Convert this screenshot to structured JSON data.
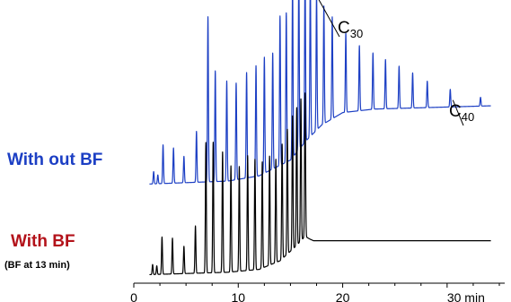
{
  "chart_data": {
    "type": "line",
    "xlim": [
      0,
      35
    ],
    "x_ticks": [
      {
        "value": 0,
        "label": "0"
      },
      {
        "value": 10,
        "label": "10"
      },
      {
        "value": 20,
        "label": "20"
      },
      {
        "value": 30,
        "label": "30 min"
      }
    ],
    "x_minor_step": 2.5,
    "grid": false,
    "series": [
      {
        "name": "With out BF",
        "color": "#1c3fc4",
        "baseline_rel": 0.0,
        "drift": [
          [
            0,
            0.0
          ],
          [
            9,
            0.02
          ],
          [
            12,
            0.05
          ],
          [
            15,
            0.14
          ],
          [
            16.5,
            0.25
          ],
          [
            18,
            0.34
          ],
          [
            20,
            0.41
          ],
          [
            23,
            0.43
          ],
          [
            35,
            0.45
          ]
        ],
        "peaks": [
          {
            "rt": 1.9,
            "h": 0.07
          },
          {
            "rt": 2.3,
            "h": 0.05
          },
          {
            "rt": 2.8,
            "h": 0.22
          },
          {
            "rt": 3.8,
            "h": 0.2
          },
          {
            "rt": 4.8,
            "h": 0.15
          },
          {
            "rt": 6.0,
            "h": 0.29
          },
          {
            "rt": 7.1,
            "h": 0.94
          },
          {
            "rt": 7.8,
            "h": 0.63
          },
          {
            "rt": 8.9,
            "h": 0.57
          },
          {
            "rt": 9.8,
            "h": 0.55
          },
          {
            "rt": 10.8,
            "h": 0.6
          },
          {
            "rt": 11.7,
            "h": 0.63
          },
          {
            "rt": 12.5,
            "h": 0.66
          },
          {
            "rt": 13.3,
            "h": 0.66
          },
          {
            "rt": 14.0,
            "h": 0.85
          },
          {
            "rt": 14.6,
            "h": 0.85
          },
          {
            "rt": 15.2,
            "h": 0.98
          },
          {
            "rt": 15.8,
            "h": 1.02
          },
          {
            "rt": 16.4,
            "h": 0.98
          },
          {
            "rt": 16.9,
            "h": 0.9
          },
          {
            "rt": 17.5,
            "h": 0.78
          },
          {
            "rt": 18.2,
            "h": 0.67
          },
          {
            "rt": 19.0,
            "h": 0.58
          },
          {
            "rt": 20.3,
            "h": 0.45
          },
          {
            "rt": 21.6,
            "h": 0.37
          },
          {
            "rt": 22.9,
            "h": 0.32
          },
          {
            "rt": 24.1,
            "h": 0.28
          },
          {
            "rt": 25.4,
            "h": 0.24
          },
          {
            "rt": 26.7,
            "h": 0.2
          },
          {
            "rt": 28.1,
            "h": 0.15
          },
          {
            "rt": 30.3,
            "h": 0.1
          },
          {
            "rt": 33.2,
            "h": 0.05
          }
        ]
      },
      {
        "name": "With BF",
        "color": "#000000",
        "baseline_rel": 0.0,
        "drift": [
          [
            0,
            0.0
          ],
          [
            9,
            0.02
          ],
          [
            12,
            0.04
          ],
          [
            14,
            0.1
          ],
          [
            15.5,
            0.2
          ],
          [
            16.4,
            0.27
          ],
          [
            16.9,
            0.25
          ],
          [
            17.2,
            0.24
          ],
          [
            35,
            0.24
          ]
        ],
        "peaks": [
          {
            "rt": 1.8,
            "h": 0.07
          },
          {
            "rt": 2.2,
            "h": 0.06
          },
          {
            "rt": 2.7,
            "h": 0.26
          },
          {
            "rt": 3.7,
            "h": 0.25
          },
          {
            "rt": 4.8,
            "h": 0.19
          },
          {
            "rt": 5.9,
            "h": 0.33
          },
          {
            "rt": 6.9,
            "h": 0.91
          },
          {
            "rt": 7.6,
            "h": 0.91
          },
          {
            "rt": 8.5,
            "h": 0.84
          },
          {
            "rt": 9.3,
            "h": 0.74
          },
          {
            "rt": 10.1,
            "h": 0.73
          },
          {
            "rt": 10.9,
            "h": 0.8
          },
          {
            "rt": 11.6,
            "h": 0.77
          },
          {
            "rt": 12.3,
            "h": 0.74
          },
          {
            "rt": 13.0,
            "h": 0.76
          },
          {
            "rt": 13.6,
            "h": 0.72
          },
          {
            "rt": 14.2,
            "h": 0.8
          },
          {
            "rt": 14.7,
            "h": 0.87
          },
          {
            "rt": 15.2,
            "h": 0.93
          },
          {
            "rt": 15.6,
            "h": 0.96
          },
          {
            "rt": 16.0,
            "h": 0.99
          },
          {
            "rt": 16.4,
            "h": 1.0
          }
        ]
      }
    ],
    "annotations": [
      {
        "label_base": "C",
        "label_sub": "30",
        "series": 0,
        "peak_index": 19
      },
      {
        "label_base": "C",
        "label_sub": "40",
        "series": 0,
        "peak_index": 30
      }
    ]
  },
  "labels": {
    "series1": "With out BF",
    "series2": "With BF",
    "series2_note": "(BF at 13 min)"
  }
}
